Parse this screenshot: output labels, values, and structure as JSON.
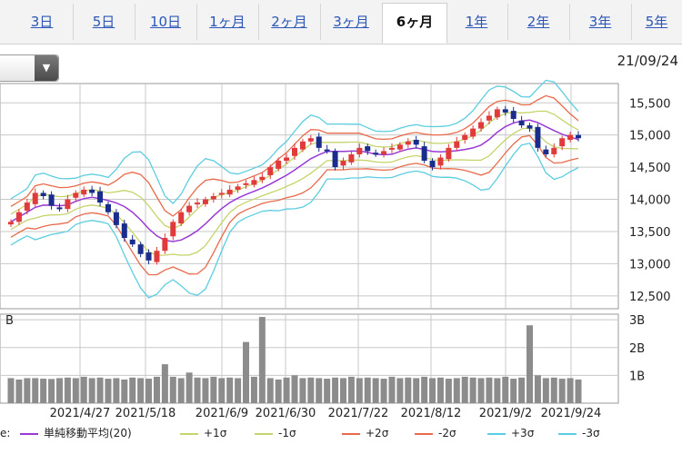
{
  "tabs": [
    {
      "label": "3日",
      "active": false
    },
    {
      "label": "5日",
      "active": false
    },
    {
      "label": "10日",
      "active": false
    },
    {
      "label": "1ヶ月",
      "active": false
    },
    {
      "label": "2ヶ月",
      "active": false
    },
    {
      "label": "3ヶ月",
      "active": false
    },
    {
      "label": "6ヶ月",
      "active": true
    },
    {
      "label": "1年",
      "active": false
    },
    {
      "label": "2年",
      "active": false
    },
    {
      "label": "3年",
      "active": false
    },
    {
      "label": "5年",
      "active": false
    }
  ],
  "dropdown": {
    "icon": "triangle-down-icon"
  },
  "date_label": "21/09/24",
  "volume_axis_label": "B",
  "legend_prefix": "e:",
  "colors": {
    "up_candle": "#e03a3a",
    "down_candle": "#1a2d8c",
    "ma": "#9a3ad6",
    "sigma1": "#c6d46a",
    "sigma2": "#e86a4a",
    "sigma3": "#5bcde0",
    "volume": "#8c8c8c",
    "grid": "#c8c8c8"
  },
  "chart_data": {
    "type": "candlestick",
    "price_axis": {
      "ticks": [
        "15,500",
        "15,000",
        "14,500",
        "14,000",
        "13,500",
        "13,000",
        "12,500"
      ],
      "range": [
        12300,
        15800
      ]
    },
    "volume_axis": {
      "ticks": [
        "3B",
        "2B",
        "1B"
      ],
      "range": [
        0,
        3.2
      ]
    },
    "x_tick_labels": [
      "2021/4/27",
      "2021/5/18",
      "2021/6/9",
      "2021/6/30",
      "2021/7/22",
      "2021/8/12",
      "2021/9/2",
      "2021/9/24"
    ],
    "legend": [
      {
        "label": "単純移動平均(20)",
        "color": "#9a3ad6"
      },
      {
        "label": "+1σ",
        "color": "#c6d46a"
      },
      {
        "label": "-1σ",
        "color": "#c6d46a"
      },
      {
        "label": "+2σ",
        "color": "#e86a4a"
      },
      {
        "label": "-2σ",
        "color": "#e86a4a"
      },
      {
        "label": "+3σ",
        "color": "#5bcde0"
      },
      {
        "label": "-3σ",
        "color": "#5bcde0"
      }
    ],
    "close_series": [
      13650,
      13800,
      13950,
      14100,
      14050,
      13900,
      13850,
      14000,
      14100,
      14150,
      14100,
      13950,
      13800,
      13600,
      13400,
      13300,
      13150,
      13050,
      13200,
      13400,
      13650,
      13800,
      13900,
      13950,
      14000,
      14050,
      14100,
      14150,
      14200,
      14250,
      14300,
      14350,
      14500,
      14600,
      14650,
      14800,
      14900,
      14950,
      14800,
      14750,
      14500,
      14600,
      14700,
      14800,
      14750,
      14700,
      14750,
      14800,
      14850,
      14900,
      14850,
      14600,
      14500,
      14650,
      14800,
      14900,
      15000,
      15100,
      15200,
      15300,
      15400,
      15350,
      15250,
      15150,
      15100,
      14800,
      14700,
      14800,
      14950,
      15000,
      14950
    ],
    "volume_series_B": [
      0.9,
      0.85,
      0.9,
      0.9,
      0.88,
      0.87,
      0.9,
      0.92,
      0.9,
      0.95,
      0.9,
      0.92,
      0.88,
      0.9,
      0.85,
      0.92,
      0.9,
      0.88,
      0.95,
      1.4,
      0.95,
      0.9,
      1.1,
      0.92,
      0.9,
      0.95,
      0.9,
      0.92,
      0.9,
      2.2,
      0.95,
      3.1,
      0.9,
      0.85,
      0.92,
      1.0,
      0.9,
      0.92,
      0.9,
      0.88,
      0.92,
      0.9,
      0.95,
      0.9,
      0.92,
      0.9,
      0.88,
      0.95,
      0.9,
      0.92,
      0.9,
      0.95,
      0.9,
      0.92,
      0.88,
      0.9,
      0.95,
      0.92,
      0.9,
      0.92,
      0.9,
      0.95,
      0.88,
      0.92,
      2.8,
      1.0,
      0.9,
      0.92,
      0.88,
      0.9,
      0.85
    ]
  }
}
